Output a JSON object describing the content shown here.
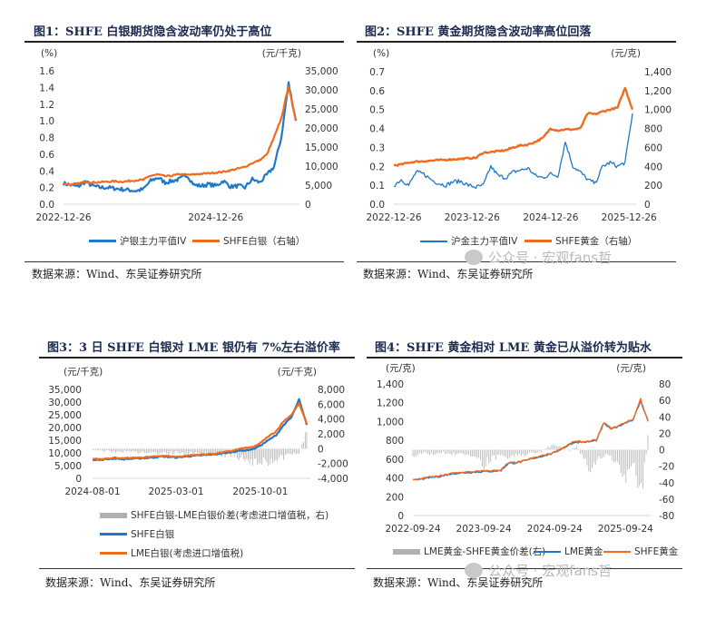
{
  "watermark": "公众号 · 宏观fans哲",
  "source": "数据来源：Wind、东吴证券研究所",
  "colors": {
    "blue": "#1f78c8",
    "orange": "#f26b1d",
    "gray": "#b0b0b0"
  },
  "chart_data": [
    {
      "type": "line",
      "title": "图1：SHFE 白银期货隐含波动率仍处于高位",
      "left_unit": "(%)",
      "right_unit": "(元/千克)",
      "ylim": [
        0,
        1.6
      ],
      "ystep": 0.2,
      "ydec": 1,
      "y2lim": [
        0,
        35000
      ],
      "y2step": 5000,
      "x_range": [
        "2022-12-26",
        "2026-02-01"
      ],
      "x_ticks": [
        "2022-12-26",
        "2024-12-26"
      ],
      "series": [
        {
          "name": "沪银主力平值IV",
          "axis": "left",
          "color": "blue",
          "width": 2.2,
          "values": [
            0.25,
            0.23,
            0.21,
            0.27,
            0.22,
            0.2,
            0.2,
            0.19,
            0.18,
            0.17,
            0.16,
            0.18,
            0.28,
            0.32,
            0.26,
            0.28,
            0.3,
            0.35,
            0.23,
            0.22,
            0.24,
            0.22,
            0.28,
            0.21,
            0.22,
            0.2,
            0.3,
            0.26,
            0.35,
            0.45,
            0.8,
            1.45,
            1.0
          ]
        },
        {
          "name": "SHFE白银（右轴）",
          "axis": "right",
          "color": "orange",
          "width": 2.2,
          "values": [
            5400,
            5100,
            5400,
            5900,
            5700,
            5800,
            5900,
            6000,
            5900,
            6100,
            6300,
            6400,
            7500,
            7800,
            7300,
            7500,
            7900,
            7700,
            7800,
            8000,
            8100,
            8300,
            8500,
            8900,
            9300,
            9800,
            10800,
            11500,
            13000,
            17500,
            22500,
            31000,
            22000
          ]
        }
      ],
      "legend": [
        "沪银主力平值IV",
        "SHFE白银（右轴）"
      ]
    },
    {
      "type": "line",
      "title": "图2：SHFE 黄金期货隐含波动率高位回落",
      "left_unit": "(%)",
      "right_unit": "(元/克)",
      "ylim": [
        0,
        0.7
      ],
      "ystep": 0.1,
      "ydec": 1,
      "y2lim": [
        0,
        1400
      ],
      "y2step": 200,
      "x_range": [
        "2022-12-26",
        "2026-01-28"
      ],
      "x_ticks": [
        "2022-12-26",
        "2023-12-26",
        "2024-12-26",
        "2025-12-26"
      ],
      "series": [
        {
          "name": "沪金主力平值IV",
          "axis": "left",
          "color": "blue",
          "width": 1.3,
          "values": [
            0.1,
            0.13,
            0.1,
            0.17,
            0.16,
            0.13,
            0.11,
            0.1,
            0.12,
            0.12,
            0.1,
            0.09,
            0.1,
            0.2,
            0.15,
            0.14,
            0.17,
            0.18,
            0.19,
            0.15,
            0.14,
            0.16,
            0.15,
            0.33,
            0.2,
            0.17,
            0.13,
            0.11,
            0.2,
            0.22,
            0.2,
            0.22,
            0.48
          ]
        },
        {
          "name": "SHFE黄金（右轴）",
          "axis": "right",
          "color": "orange",
          "width": 2.4,
          "values": [
            410,
            420,
            440,
            450,
            455,
            460,
            465,
            470,
            475,
            480,
            485,
            490,
            545,
            550,
            560,
            570,
            600,
            620,
            630,
            660,
            700,
            800,
            780,
            790,
            790,
            800,
            960,
            950,
            980,
            1000,
            1020,
            1230,
            1000
          ]
        }
      ],
      "legend": [
        "沪金主力平值IV",
        "SHFE黄金（右轴）"
      ]
    },
    {
      "type": "line",
      "title": "图3：3 日 SHFE 白银对 LME 银仍有 7%左右溢价率",
      "left_unit": "(元/千克)",
      "right_unit": "(元/千克)",
      "ylim": [
        0,
        35000
      ],
      "ystep": 5000,
      "ydec": 0,
      "y2lim": [
        -4000,
        8000
      ],
      "y2step": 2000,
      "x_range": [
        "2024-08-01",
        "2026-02-05"
      ],
      "x_ticks": [
        "2024-08-01",
        "2025-03-01",
        "2025-10-01"
      ],
      "bars": {
        "name": "SHFE白银-LME白银价差(考虑进口增值税，右)",
        "axis": "right",
        "color": "gray",
        "values": [
          -200,
          -300,
          -400,
          -500,
          -400,
          -500,
          -600,
          -500,
          -700,
          -600,
          -700,
          -600,
          -800,
          -700,
          -900,
          -800,
          -900,
          -1000,
          -1200,
          -1500,
          -2200,
          -1800,
          -2000,
          -1600,
          -1400,
          -1200,
          -800,
          2500
        ]
      },
      "series": [
        {
          "name": "SHFE白银",
          "axis": "left",
          "color": "blue",
          "width": 2.2,
          "values": [
            7400,
            7200,
            7600,
            7800,
            7500,
            7700,
            7800,
            8000,
            8200,
            8600,
            8400,
            8200,
            8500,
            8800,
            9000,
            9200,
            9400,
            9800,
            10200,
            10800,
            11000,
            11500,
            13000,
            15000,
            17000,
            21000,
            24000,
            31000,
            21000
          ]
        },
        {
          "name": "LME白银(考虑进口增值税)",
          "axis": "left",
          "color": "orange",
          "width": 2.2,
          "values": [
            7700,
            7500,
            7900,
            8100,
            7800,
            8000,
            8100,
            8300,
            8500,
            8900,
            8700,
            8500,
            8800,
            9100,
            9300,
            9500,
            9700,
            10200,
            10600,
            11400,
            12000,
            12200,
            14000,
            16500,
            18500,
            22500,
            25000,
            29500,
            21500
          ]
        }
      ],
      "legend": [
        "SHFE白银-LME白银价差(考虑进口增值税，右)",
        "SHFE白银",
        "LME白银(考虑进口增值税)"
      ]
    },
    {
      "type": "line",
      "title": "图4：SHFE 黄金相对 LME 黄金已从溢价转为贴水",
      "left_unit": "(元/克)",
      "right_unit": "(元/克)",
      "ylim": [
        0,
        1400
      ],
      "ystep": 200,
      "ydec": 0,
      "y2lim": [
        -80,
        80
      ],
      "y2step": 20,
      "x_range": [
        "2022-09-24",
        "2026-02-05"
      ],
      "x_ticks": [
        "2022-09-24",
        "2023-09-24",
        "2024-09-24",
        "2025-09-24"
      ],
      "bars": {
        "name": "LME黄金-SHFE黄金价差(右)",
        "axis": "right",
        "color": "gray",
        "values": [
          -8,
          -6,
          -5,
          -7,
          -4,
          -6,
          -8,
          -5,
          -7,
          -10,
          -22,
          -12,
          -9,
          -10,
          -8,
          -7,
          -6,
          -5,
          -3,
          4,
          6,
          3,
          -2,
          5,
          -15,
          -35,
          -10,
          -8,
          -12,
          -20,
          -45,
          -10,
          -70,
          15
        ]
      },
      "series": [
        {
          "name": "LME黄金",
          "axis": "left",
          "color": "blue",
          "width": 1.4,
          "values": [
            375,
            385,
            400,
            410,
            420,
            440,
            450,
            455,
            460,
            465,
            470,
            470,
            480,
            555,
            560,
            575,
            600,
            620,
            640,
            660,
            700,
            740,
            780,
            780,
            785,
            800,
            980,
            920,
            950,
            990,
            1020,
            1220,
            1010
          ]
        },
        {
          "name": "SHFE黄金",
          "axis": "left",
          "color": "orange",
          "width": 1.4,
          "values": [
            380,
            390,
            405,
            415,
            425,
            445,
            455,
            460,
            465,
            470,
            475,
            478,
            486,
            560,
            565,
            580,
            605,
            625,
            645,
            665,
            705,
            745,
            790,
            785,
            790,
            805,
            990,
            925,
            955,
            995,
            1025,
            1240,
            1000
          ]
        }
      ],
      "legend": [
        "LME黄金-SHFE黄金价差(右)",
        "LME黄金",
        "SHFE黄金"
      ]
    }
  ]
}
